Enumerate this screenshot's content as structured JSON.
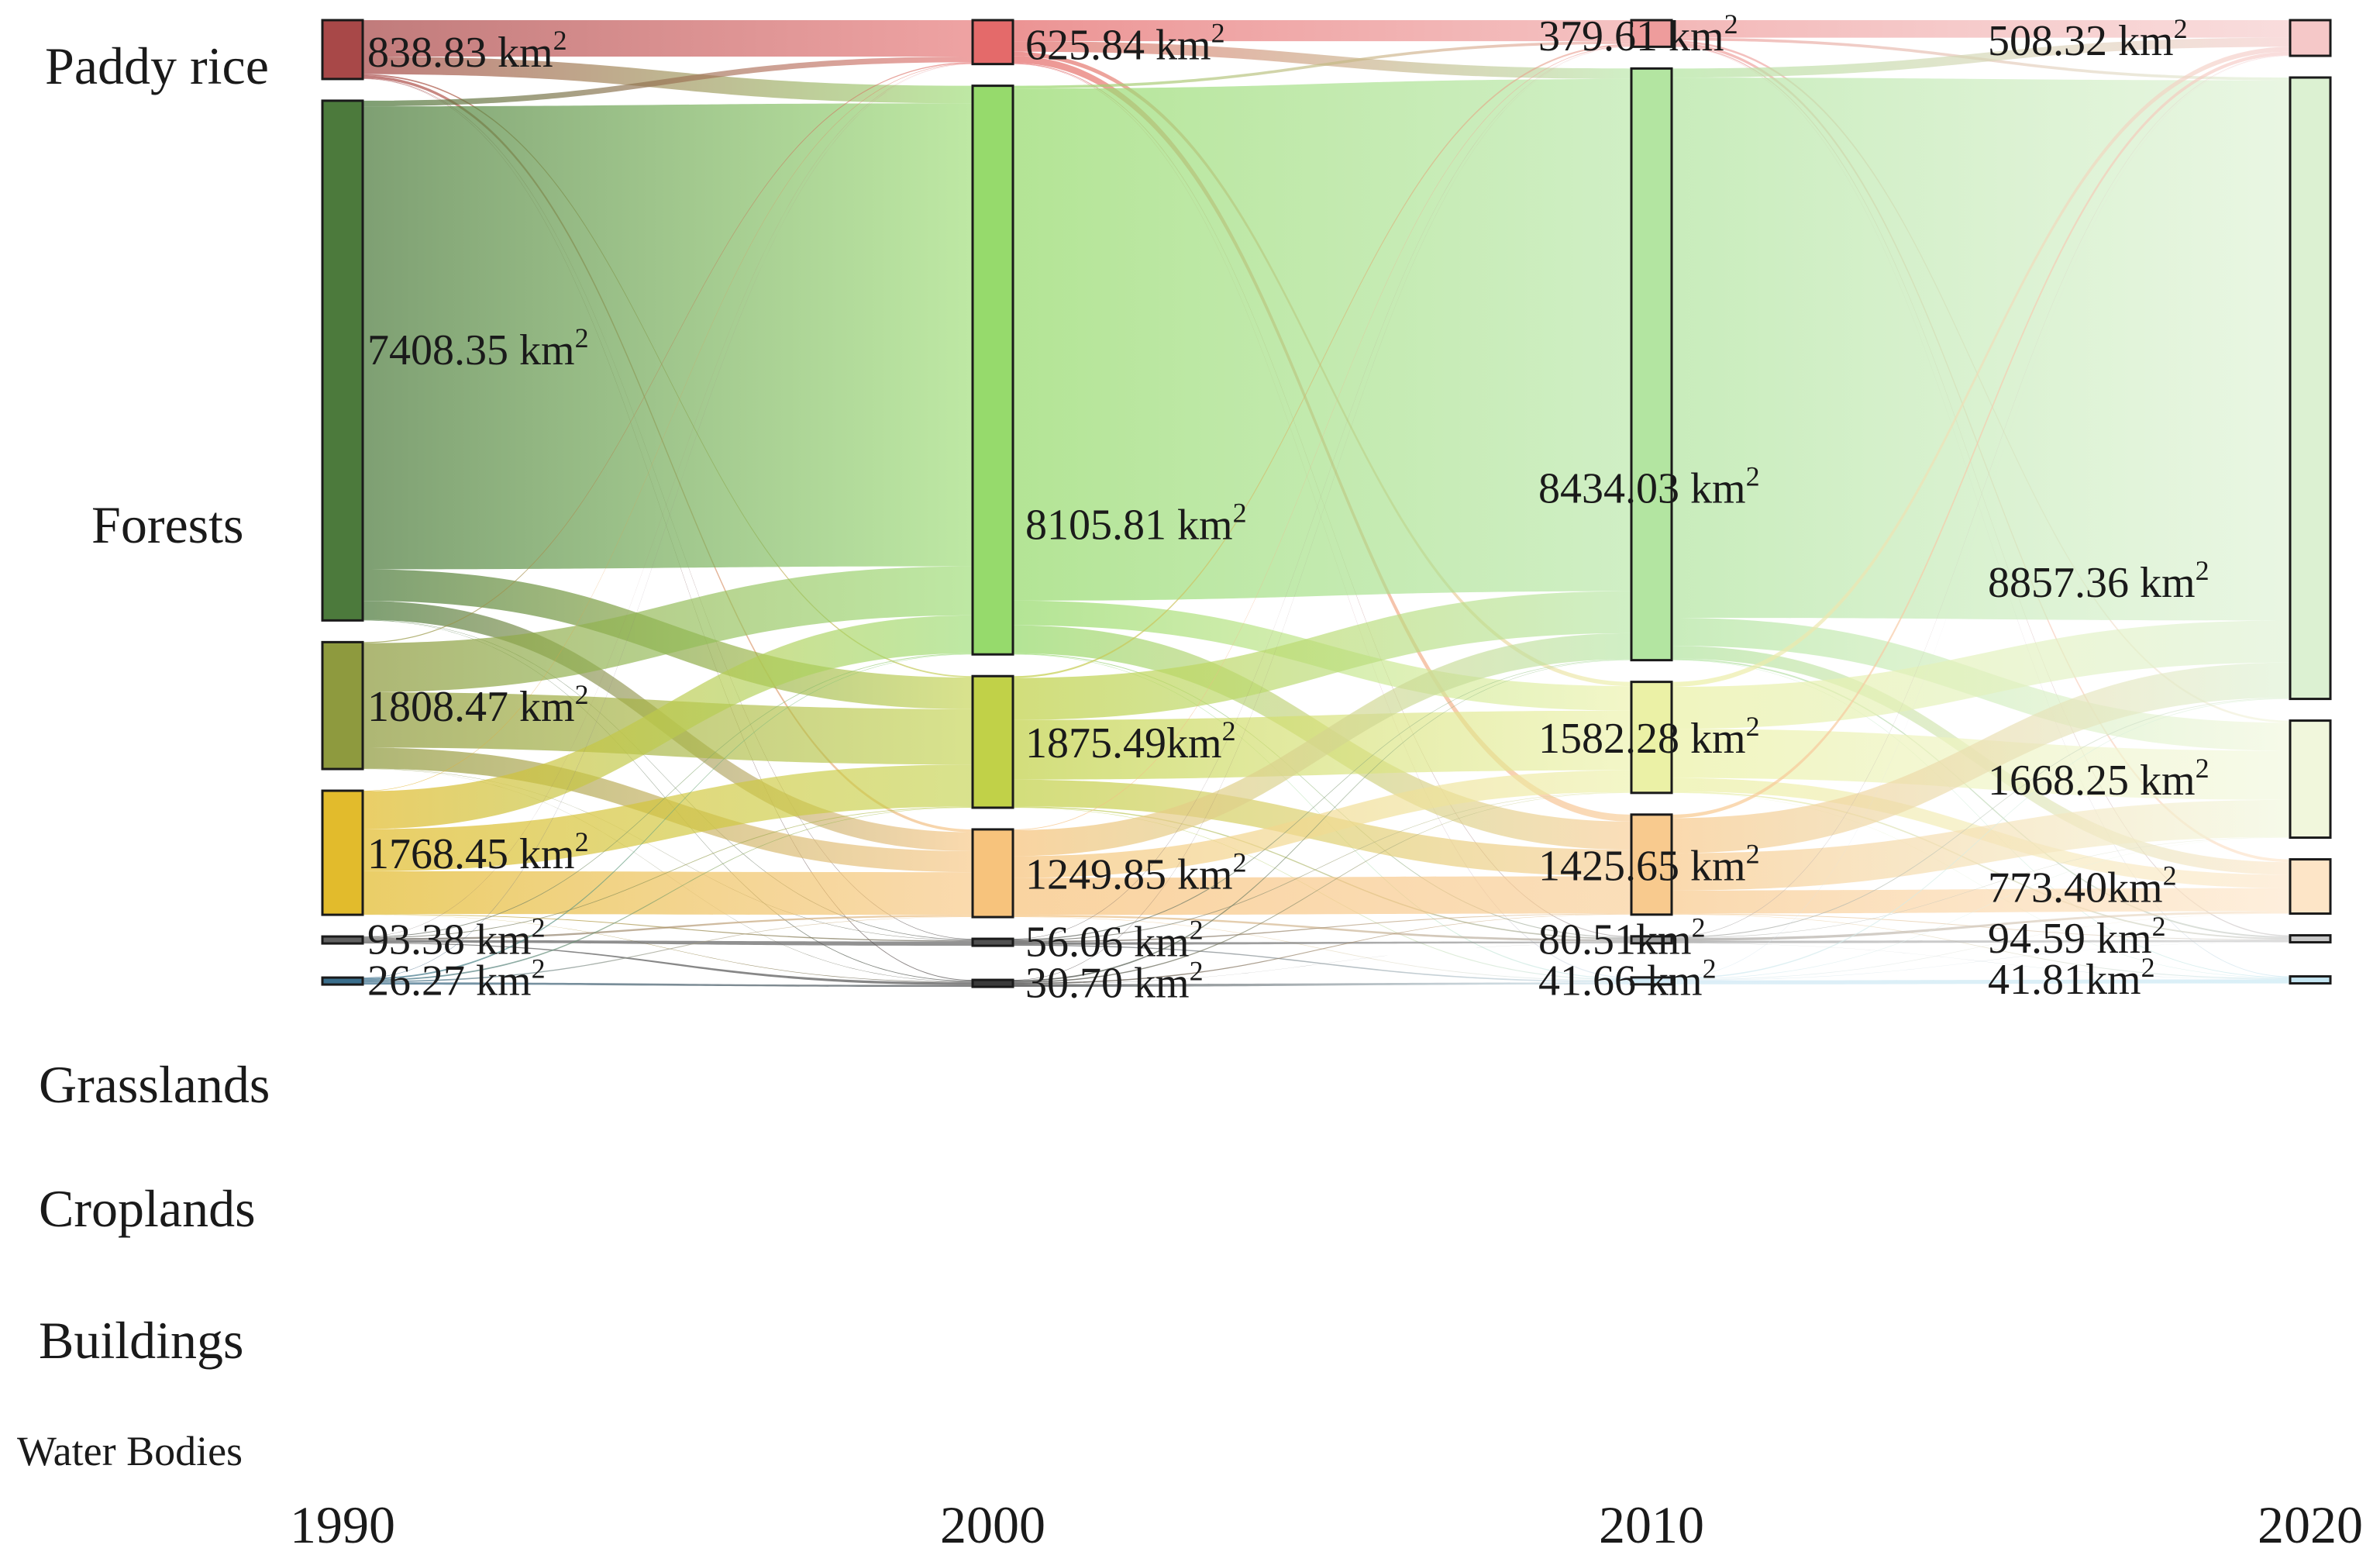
{
  "chart_data": {
    "type": "sankey",
    "title": "",
    "years": [
      "1990",
      "2000",
      "2010",
      "2020"
    ],
    "categories": [
      "Paddy rice",
      "Forests",
      "Grasslands",
      "Croplands",
      "Buildings",
      "Water Bodies"
    ],
    "unit": "km",
    "unit_superscript": "2",
    "colors": {
      "1990": [
        "#a84848",
        "#4c7a3c",
        "#8e9a3e",
        "#e2bb2c",
        "#606060",
        "#3a6e8c"
      ],
      "2000": [
        "#e46a6a",
        "#96da6c",
        "#c1d148",
        "#f7c37c",
        "#505050",
        "#3a3a3a"
      ],
      "2010": [
        "#ee9c9c",
        "#b3e5a1",
        "#ebf1a6",
        "#f8ca8e",
        "#a0a0a0",
        "#cfe8f4"
      ],
      "2020": [
        "#f5c8c8",
        "#dcf1d2",
        "#f1f7dc",
        "#fde5c7",
        "#c8c8c8",
        "#c4e6f2"
      ]
    },
    "stocks": {
      "1990": [
        {
          "category": "Paddy rice",
          "value": 838.83,
          "label": "838.83 km"
        },
        {
          "category": "Forests",
          "value": 7408.35,
          "label": "7408.35 km"
        },
        {
          "category": "Grasslands",
          "value": 1808.47,
          "label": "1808.47 km"
        },
        {
          "category": "Croplands",
          "value": 1768.45,
          "label": "1768.45 km"
        },
        {
          "category": "Buildings",
          "value": 93.38,
          "label": "93.38 km"
        },
        {
          "category": "Water Bodies",
          "value": 26.27,
          "label": "26.27 km"
        }
      ],
      "2000": [
        {
          "category": "Paddy rice",
          "value": 625.84,
          "label": "625.84 km"
        },
        {
          "category": "Forests",
          "value": 8105.81,
          "label": "8105.81 km"
        },
        {
          "category": "Grasslands",
          "value": 1875.49,
          "label": "1875.49km"
        },
        {
          "category": "Croplands",
          "value": 1249.85,
          "label": "1249.85 km"
        },
        {
          "category": "Buildings",
          "value": 56.06,
          "label": "56.06 km"
        },
        {
          "category": "Water Bodies",
          "value": 30.7,
          "label": "30.70 km"
        }
      ],
      "2010": [
        {
          "category": "Paddy rice",
          "value": 379.61,
          "label": "379.61 km"
        },
        {
          "category": "Forests",
          "value": 8434.03,
          "label": "8434.03 km"
        },
        {
          "category": "Grasslands",
          "value": 1582.28,
          "label": "1582.28 km"
        },
        {
          "category": "Croplands",
          "value": 1425.65,
          "label": "1425.65 km"
        },
        {
          "category": "Buildings",
          "value": 80.51,
          "label": "80.51km"
        },
        {
          "category": "Water Bodies",
          "value": 41.66,
          "label": "41.66 km"
        }
      ],
      "2020": [
        {
          "category": "Paddy rice",
          "value": 508.32,
          "label": "508.32 km"
        },
        {
          "category": "Forests",
          "value": 8857.36,
          "label": "8857.36 km"
        },
        {
          "category": "Grasslands",
          "value": 1668.25,
          "label": "1668.25 km"
        },
        {
          "category": "Croplands",
          "value": 773.4,
          "label": "773.40km"
        },
        {
          "category": "Buildings",
          "value": 94.59,
          "label": "94.59 km"
        },
        {
          "category": "Water Bodies",
          "value": 41.81,
          "label": "41.81km"
        }
      ]
    },
    "transitions": {
      "1990-2000": [
        [
          520,
          250,
          20,
          40,
          5,
          3.83
        ],
        [
          80,
          6600,
          450,
          270,
          5,
          3.35
        ],
        [
          14,
          700,
          790,
          300,
          3,
          1.47
        ],
        [
          7,
          540,
          600,
          610,
          9,
          2.45
        ],
        [
          3,
          10,
          10,
          25,
          34,
          11.38
        ],
        [
          1.84,
          5.81,
          5.49,
          4.85,
          0.06,
          8.22
        ]
      ],
      "2000-2010": [
        [
          300,
          150,
          60,
          100,
          10,
          5.84
        ],
        [
          40,
          7300,
          350,
          400,
          10,
          5.81
        ],
        [
          25,
          600,
          850,
          380,
          15,
          5.49
        ],
        [
          10,
          370,
          310,
          530,
          25,
          4.85
        ],
        [
          3,
          8,
          7,
          10,
          20,
          8.06
        ],
        [
          1.61,
          6.03,
          5.28,
          5.65,
          0.51,
          11.62
        ]
      ],
      "2010-2020": [
        [
          250,
          40,
          30,
          40,
          15,
          4.61
        ],
        [
          130,
          7700,
          400,
          180,
          20,
          4.03
        ],
        [
          70,
          600,
          700,
          190,
          20,
          2.28
        ],
        [
          50,
          500,
          530,
          330,
          10,
          5.65
        ],
        [
          6,
          10,
          5,
          30,
          28,
          1.51
        ],
        [
          2.32,
          7.36,
          3.25,
          3.4,
          1.59,
          23.74
        ]
      ]
    }
  }
}
